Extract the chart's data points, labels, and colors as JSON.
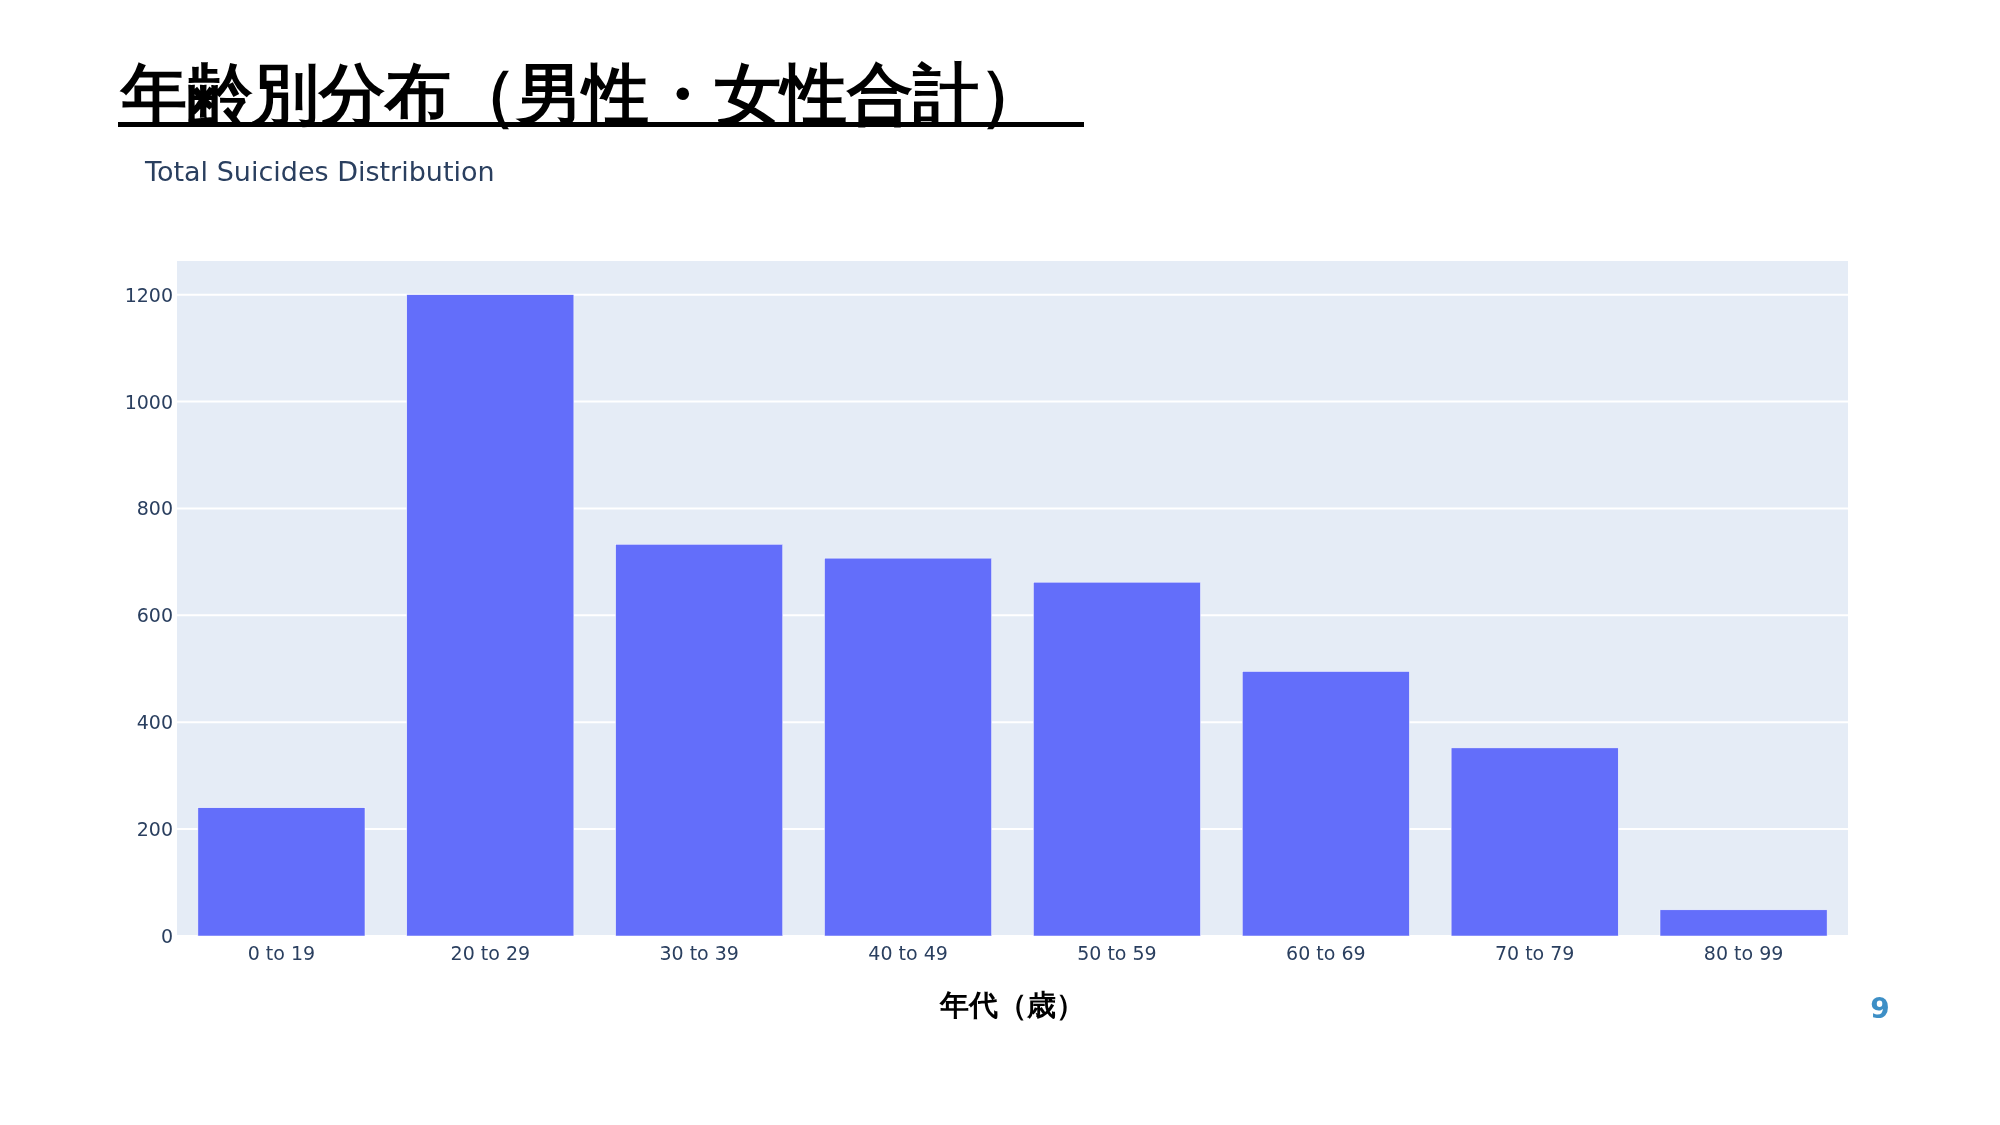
{
  "chart_data": {
    "type": "bar",
    "title": "年齢別分布（男性・女性合計）",
    "subtitle": "Total Suicides Distribution",
    "xlabel": "年代（歳）",
    "categories": [
      "0 to 19",
      "20 to 29",
      "30 to 39",
      "40 to 49",
      "50 to 59",
      "60 to 69",
      "70 to 79",
      "80 to 99"
    ],
    "values": [
      240,
      1200,
      733,
      707,
      662,
      495,
      352,
      49
    ],
    "color": "#636efa",
    "ylim": [
      0,
      1263
    ],
    "yticks": [
      0,
      200,
      400,
      600,
      800,
      1000,
      1200
    ],
    "grid": "y",
    "annotations": [
      "9"
    ]
  }
}
